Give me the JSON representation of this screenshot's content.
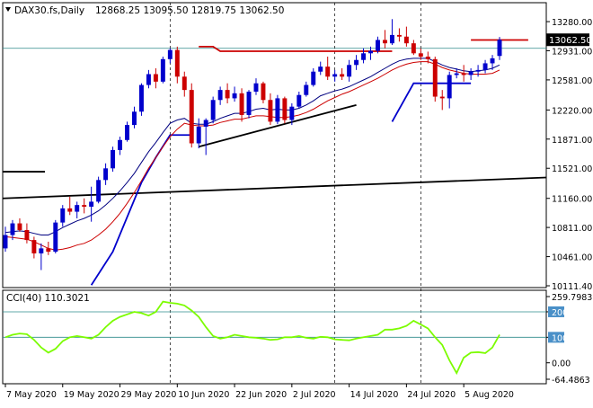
{
  "chart_data": [
    {
      "type": "candlestick",
      "title": "DAX30.fs,Daily",
      "ohlc_header": [
        "12868.25",
        "13095.50",
        "12819.75",
        "13062.50"
      ],
      "current_price": 13062.5,
      "current_price_label": "13062.50",
      "ylim": [
        10111.4,
        13410
      ],
      "y_ticks": [
        13280.0,
        12931.0,
        12581.0,
        12220.0,
        11871.0,
        11521.0,
        11160.0,
        10811.0,
        10461.0,
        10111.4
      ],
      "y_tick_labels": [
        "13280.00",
        "12931.00",
        "12581.00",
        "12220.00",
        "11871.00",
        "11521.00",
        "11160.00",
        "10811.00",
        "10461.00",
        "10111.40"
      ],
      "x_tick_labels": [
        "7 May 2020",
        "19 May 2020",
        "29 May 2020",
        "10 Jun 2020",
        "22 Jun 2020",
        "2 Jul 2020",
        "14 Jul 2020",
        "24 Jul 2020",
        "5 Aug 2020"
      ],
      "candles": [
        {
          "o": 10560,
          "h": 10820,
          "l": 10520,
          "c": 10720
        },
        {
          "o": 10720,
          "h": 10900,
          "l": 10660,
          "c": 10860
        },
        {
          "o": 10860,
          "h": 10920,
          "l": 10760,
          "c": 10780
        },
        {
          "o": 10780,
          "h": 10860,
          "l": 10620,
          "c": 10660
        },
        {
          "o": 10660,
          "h": 10700,
          "l": 10440,
          "c": 10500
        },
        {
          "o": 10500,
          "h": 10620,
          "l": 10300,
          "c": 10560
        },
        {
          "o": 10560,
          "h": 10640,
          "l": 10480,
          "c": 10520
        },
        {
          "o": 10520,
          "h": 10900,
          "l": 10500,
          "c": 10870
        },
        {
          "o": 10870,
          "h": 11080,
          "l": 10820,
          "c": 11040
        },
        {
          "o": 11040,
          "h": 11180,
          "l": 10960,
          "c": 11000
        },
        {
          "o": 11000,
          "h": 11120,
          "l": 10920,
          "c": 11080
        },
        {
          "o": 11080,
          "h": 11160,
          "l": 10980,
          "c": 11060
        },
        {
          "o": 11060,
          "h": 11300,
          "l": 10880,
          "c": 11120
        },
        {
          "o": 11120,
          "h": 11420,
          "l": 11100,
          "c": 11380
        },
        {
          "o": 11380,
          "h": 11580,
          "l": 11320,
          "c": 11520
        },
        {
          "o": 11520,
          "h": 11780,
          "l": 11480,
          "c": 11740
        },
        {
          "o": 11740,
          "h": 11900,
          "l": 11680,
          "c": 11860
        },
        {
          "o": 11860,
          "h": 12080,
          "l": 11840,
          "c": 12040
        },
        {
          "o": 12040,
          "h": 12260,
          "l": 12000,
          "c": 12200
        },
        {
          "o": 12200,
          "h": 12540,
          "l": 12150,
          "c": 12520
        },
        {
          "o": 12520,
          "h": 12700,
          "l": 12480,
          "c": 12650
        },
        {
          "o": 12650,
          "h": 12720,
          "l": 12480,
          "c": 12560
        },
        {
          "o": 12560,
          "h": 12860,
          "l": 12540,
          "c": 12830
        },
        {
          "o": 12830,
          "h": 12960,
          "l": 12780,
          "c": 12940
        },
        {
          "o": 12940,
          "h": 12980,
          "l": 12540,
          "c": 12620
        },
        {
          "o": 12620,
          "h": 12680,
          "l": 12380,
          "c": 12460
        },
        {
          "o": 12460,
          "h": 12540,
          "l": 11770,
          "c": 11820
        },
        {
          "o": 11820,
          "h": 12120,
          "l": 11760,
          "c": 12020
        },
        {
          "o": 12020,
          "h": 12120,
          "l": 11680,
          "c": 12100
        },
        {
          "o": 12100,
          "h": 12380,
          "l": 12060,
          "c": 12340
        },
        {
          "o": 12340,
          "h": 12500,
          "l": 12280,
          "c": 12460
        },
        {
          "o": 12460,
          "h": 12540,
          "l": 12300,
          "c": 12360
        },
        {
          "o": 12360,
          "h": 12500,
          "l": 12320,
          "c": 12420
        },
        {
          "o": 12420,
          "h": 12480,
          "l": 12080,
          "c": 12160
        },
        {
          "o": 12160,
          "h": 12460,
          "l": 12120,
          "c": 12440
        },
        {
          "o": 12440,
          "h": 12600,
          "l": 12400,
          "c": 12540
        },
        {
          "o": 12540,
          "h": 12560,
          "l": 12300,
          "c": 12340
        },
        {
          "o": 12340,
          "h": 12420,
          "l": 12040,
          "c": 12080
        },
        {
          "o": 12080,
          "h": 12400,
          "l": 12050,
          "c": 12360
        },
        {
          "o": 12360,
          "h": 12380,
          "l": 12060,
          "c": 12100
        },
        {
          "o": 12100,
          "h": 12300,
          "l": 12040,
          "c": 12260
        },
        {
          "o": 12260,
          "h": 12440,
          "l": 12240,
          "c": 12400
        },
        {
          "o": 12400,
          "h": 12560,
          "l": 12380,
          "c": 12520
        },
        {
          "o": 12520,
          "h": 12720,
          "l": 12500,
          "c": 12680
        },
        {
          "o": 12680,
          "h": 12800,
          "l": 12640,
          "c": 12740
        },
        {
          "o": 12740,
          "h": 12860,
          "l": 12580,
          "c": 12620
        },
        {
          "o": 12620,
          "h": 12700,
          "l": 12560,
          "c": 12650
        },
        {
          "o": 12650,
          "h": 12720,
          "l": 12580,
          "c": 12620
        },
        {
          "o": 12620,
          "h": 12820,
          "l": 12560,
          "c": 12760
        },
        {
          "o": 12760,
          "h": 12880,
          "l": 12700,
          "c": 12820
        },
        {
          "o": 12820,
          "h": 12960,
          "l": 12780,
          "c": 12900
        },
        {
          "o": 12900,
          "h": 12980,
          "l": 12820,
          "c": 12930
        },
        {
          "o": 12930,
          "h": 13100,
          "l": 12900,
          "c": 13060
        },
        {
          "o": 13060,
          "h": 13180,
          "l": 12960,
          "c": 13020
        },
        {
          "o": 13020,
          "h": 13310,
          "l": 13000,
          "c": 13120
        },
        {
          "o": 13120,
          "h": 13200,
          "l": 13040,
          "c": 13100
        },
        {
          "o": 13100,
          "h": 13220,
          "l": 12980,
          "c": 13020
        },
        {
          "o": 13020,
          "h": 13060,
          "l": 12880,
          "c": 12900
        },
        {
          "o": 12900,
          "h": 12960,
          "l": 12820,
          "c": 12860
        },
        {
          "o": 12860,
          "h": 12920,
          "l": 12780,
          "c": 12830
        },
        {
          "o": 12830,
          "h": 12860,
          "l": 12320,
          "c": 12380
        },
        {
          "o": 12380,
          "h": 12460,
          "l": 12220,
          "c": 12360
        },
        {
          "o": 12360,
          "h": 12680,
          "l": 12240,
          "c": 12640
        },
        {
          "o": 12640,
          "h": 12720,
          "l": 12600,
          "c": 12660
        },
        {
          "o": 12660,
          "h": 12760,
          "l": 12560,
          "c": 12640
        },
        {
          "o": 12640,
          "h": 12720,
          "l": 12580,
          "c": 12680
        },
        {
          "o": 12680,
          "h": 12760,
          "l": 12620,
          "c": 12700
        },
        {
          "o": 12700,
          "h": 12820,
          "l": 12660,
          "c": 12780
        },
        {
          "o": 12780,
          "h": 12880,
          "l": 12700,
          "c": 12840
        },
        {
          "o": 12868.25,
          "h": 13095.5,
          "l": 12819.75,
          "c": 13062.5
        }
      ],
      "ema_fast": [
        10750,
        10760,
        10770,
        10760,
        10740,
        10720,
        10720,
        10760,
        10810,
        10850,
        10890,
        10920,
        10960,
        11010,
        11080,
        11160,
        11250,
        11350,
        11460,
        11590,
        11720,
        11830,
        11950,
        12060,
        12100,
        12120,
        12060,
        12050,
        12050,
        12080,
        12120,
        12150,
        12180,
        12180,
        12200,
        12230,
        12240,
        12220,
        12230,
        12220,
        12220,
        12240,
        12280,
        12330,
        12390,
        12420,
        12450,
        12470,
        12500,
        12540,
        12580,
        12620,
        12670,
        12720,
        12770,
        12810,
        12830,
        12840,
        12840,
        12840,
        12800,
        12760,
        12730,
        12710,
        12690,
        12680,
        12690,
        12700,
        12720,
        12760
      ],
      "ema_slow": [
        10700,
        10690,
        10680,
        10670,
        10640,
        10600,
        10560,
        10540,
        10550,
        10570,
        10600,
        10620,
        10660,
        10720,
        10790,
        10880,
        10980,
        11100,
        11230,
        11370,
        11520,
        11650,
        11780,
        11900,
        11990,
        12060,
        12040,
        12030,
        12030,
        12040,
        12070,
        12090,
        12110,
        12110,
        12130,
        12150,
        12150,
        12140,
        12130,
        12130,
        12140,
        12160,
        12190,
        12230,
        12280,
        12330,
        12370,
        12410,
        12440,
        12480,
        12520,
        12560,
        12600,
        12650,
        12700,
        12740,
        12770,
        12790,
        12800,
        12800,
        12770,
        12730,
        12700,
        12680,
        12660,
        12650,
        12650,
        12650,
        12660,
        12700
      ],
      "stop_levels": [
        {
          "from": 12,
          "to": 25,
          "value": null
        },
        {
          "from": 13,
          "to": 19,
          "value": null
        }
      ],
      "cci": {
        "label": "CCI(40)",
        "value_label": "110.3021",
        "ylim": [
          -64.4863,
          259.7983
        ],
        "y_tick_labels": [
          "259.7983",
          "200",
          "100",
          "0.00",
          "-64.4863"
        ],
        "reference_levels": [
          200,
          100
        ],
        "values": [
          100,
          110,
          115,
          112,
          90,
          60,
          40,
          55,
          85,
          100,
          105,
          100,
          95,
          110,
          140,
          165,
          180,
          190,
          200,
          195,
          185,
          200,
          240,
          235,
          232,
          225,
          205,
          180,
          140,
          105,
          95,
          100,
          110,
          105,
          100,
          98,
          95,
          90,
          92,
          100,
          100,
          105,
          98,
          95,
          102,
          100,
          92,
          90,
          88,
          95,
          100,
          105,
          110,
          130,
          130,
          135,
          145,
          165,
          150,
          135,
          100,
          70,
          10,
          -40,
          20,
          40,
          42,
          38,
          60,
          110.3
        ]
      }
    }
  ],
  "colors": {
    "bull": "#0000cc",
    "bear": "#cc0000",
    "ema_fast": "#000080",
    "ema_slow": "#cc0000",
    "cci_line": "#7cfc00",
    "ref_line": "#2e8b8b",
    "trend_line": "#000000"
  }
}
